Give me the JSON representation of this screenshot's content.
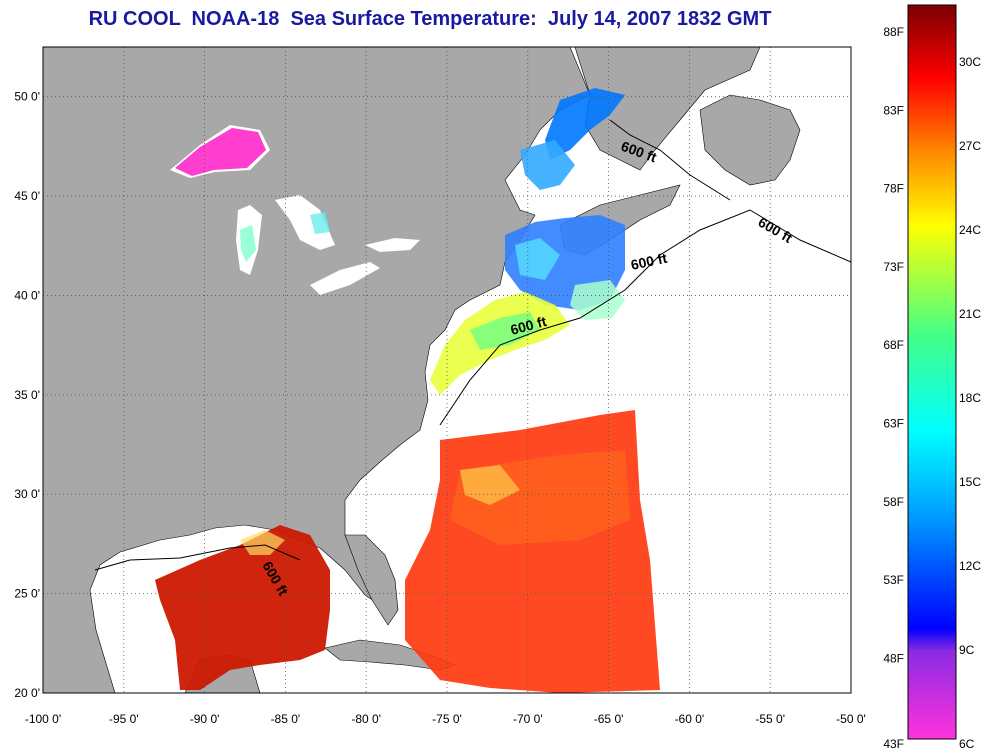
{
  "title": "RU COOL  NOAA-18  Sea Surface Temperature:  July 14, 2007 1832 GMT",
  "map": {
    "lon_range": [
      -100,
      -50
    ],
    "lat_range": [
      20,
      52.5
    ],
    "lon_ticks": [
      "-100 0'",
      "-95 0'",
      "-90 0'",
      "-85 0'",
      "-80 0'",
      "-75 0'",
      "-70 0'",
      "-65 0'",
      "-60 0'",
      "-55 0'",
      "-50 0'"
    ],
    "lat_ticks": [
      "20 0'",
      "25 0'",
      "30 0'",
      "35 0'",
      "40 0'",
      "45 0'",
      "50 0'"
    ],
    "grid": "dotted",
    "colors": {
      "land": "#a8a8a8",
      "ocean_no_data": "#ffffff",
      "coast": "#000000"
    },
    "depth_labels": [
      "600 ft",
      "600 ft",
      "600 ft",
      "600 ft",
      "600 ft"
    ]
  },
  "colorbar": {
    "fahrenheit_labels": [
      "88F",
      "83F",
      "78F",
      "73F",
      "68F",
      "63F",
      "58F",
      "53F",
      "48F",
      "43F"
    ],
    "celsius_labels": [
      "30C",
      "27C",
      "24C",
      "21C",
      "18C",
      "15C",
      "12C",
      "9C",
      "6C"
    ],
    "range_celsius": [
      6,
      32
    ],
    "colors": [
      "#ff00dd",
      "#0000ff",
      "#00ffff",
      "#ffff00",
      "#ff0000",
      "#800000"
    ]
  }
}
